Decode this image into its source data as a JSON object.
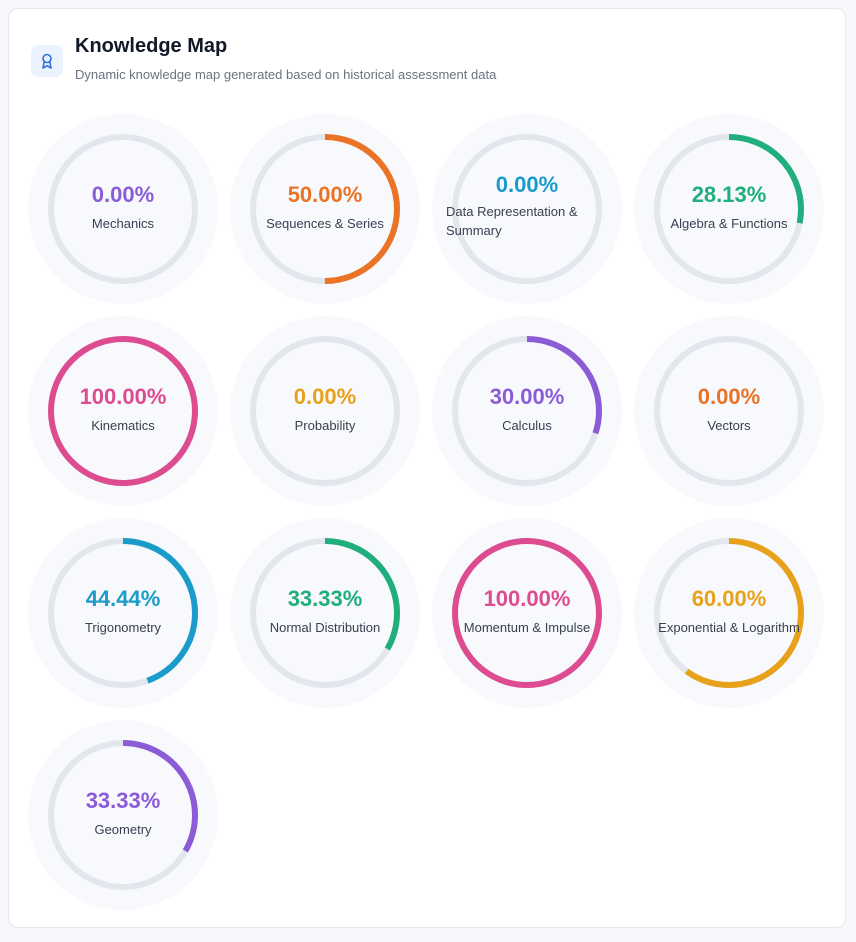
{
  "header": {
    "title": "Knowledge Map",
    "subtitle": "Dynamic knowledge map generated based on historical assessment data",
    "icon": "award-ribbon-icon"
  },
  "topics": [
    {
      "label": "Mechanics",
      "percent_text": "0.00%",
      "value": 0,
      "color": "#8b5cd6"
    },
    {
      "label": "Sequences & Series",
      "percent_text": "50.00%",
      "value": 50,
      "color": "#ea7325"
    },
    {
      "label": "Data Representation & Summary",
      "percent_text": "0.00%",
      "value": 0,
      "color": "#1a9bc9"
    },
    {
      "label": "Algebra & Functions",
      "percent_text": "28.13%",
      "value": 28.13,
      "color": "#1fae7c"
    },
    {
      "label": "Kinematics",
      "percent_text": "100.00%",
      "value": 100,
      "color": "#dd4c90"
    },
    {
      "label": "Probability",
      "percent_text": "0.00%",
      "value": 0,
      "color": "#e8a11a"
    },
    {
      "label": "Calculus",
      "percent_text": "30.00%",
      "value": 30,
      "color": "#8b5cd6"
    },
    {
      "label": "Vectors",
      "percent_text": "0.00%",
      "value": 0,
      "color": "#ea7325"
    },
    {
      "label": "Trigonometry",
      "percent_text": "44.44%",
      "value": 44.44,
      "color": "#1a9bc9"
    },
    {
      "label": "Normal Distribution",
      "percent_text": "33.33%",
      "value": 33.33,
      "color": "#1fae7c"
    },
    {
      "label": "Momentum & Impulse",
      "percent_text": "100.00%",
      "value": 100,
      "color": "#dd4c90"
    },
    {
      "label": "Exponential & Logarithm",
      "percent_text": "60.00%",
      "value": 60,
      "color": "#e8a11a"
    },
    {
      "label": "Geometry",
      "percent_text": "33.33%",
      "value": 33.33,
      "color": "#8b5cd6"
    }
  ],
  "colors": {
    "track": "#e3e7ed",
    "label": "#374151"
  }
}
